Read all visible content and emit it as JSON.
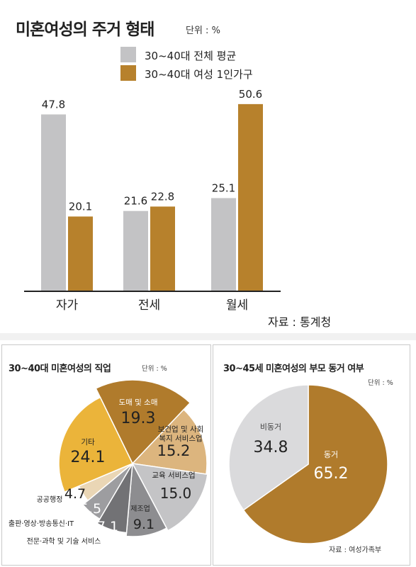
{
  "colors": {
    "gray": "#c3c3c5",
    "gold": "#b7812c",
    "pie_brown": "#b07b2c",
    "pie_light_tan": "#dcb57e",
    "pie_light_gray": "#c4c4c6",
    "pie_gray": "#8d8d90",
    "pie_dark_gray": "#727275",
    "pie_mid_gray": "#9d9da0",
    "pie_beige": "#ead6b5",
    "pie_yellow": "#ebb43a",
    "pie_rest": "#dadadc"
  },
  "top_chart": {
    "title": "미혼여성의 주거 형태",
    "unit": "단위 : %",
    "source": "자료 : 통계청",
    "chart_data": {
      "type": "bar",
      "categories": [
        "자가",
        "전세",
        "월세"
      ],
      "series": [
        {
          "name": "30~40대 전체 평균",
          "values": [
            47.8,
            21.6,
            25.1
          ],
          "labels": [
            "47.8",
            "21.6",
            "25.1"
          ]
        },
        {
          "name": "30~40대 여성 1인가구",
          "values": [
            20.1,
            22.8,
            50.6
          ],
          "labels": [
            "20.1",
            "22.8",
            "50.6"
          ]
        }
      ],
      "ylim": [
        0,
        52
      ]
    }
  },
  "left_chart": {
    "title": "30~40대 미혼여성의 직업",
    "unit": "단위 : %",
    "chart_data": {
      "type": "pie",
      "slices": [
        {
          "name": "도매 및 소매",
          "value": 19.3,
          "label": "19.3"
        },
        {
          "name": "보건업 및 사회복지 서비스업",
          "name_lines": [
            "보건업 및 사회",
            "복지 서비스업"
          ],
          "value": 15.2,
          "label": "15.2"
        },
        {
          "name": "교육 서비스업",
          "value": 15.0,
          "label": "15.0"
        },
        {
          "name": "제조업",
          "value": 9.1,
          "label": "9.1"
        },
        {
          "name": "전문·과학 및 기술 서비스",
          "value": 7.1,
          "label": "7.1"
        },
        {
          "name": "출판·영상·방송통신·IT",
          "value": 5.5,
          "label": "5.5"
        },
        {
          "name": "공공행정",
          "value": 4.7,
          "label": "4.7"
        },
        {
          "name": "기타",
          "value": 24.1,
          "label": "24.1"
        }
      ]
    }
  },
  "right_chart": {
    "title": "30~45세 미혼여성의 부모 동거 여부",
    "unit": "단위 : %",
    "source": "자료 : 여성가족부",
    "chart_data": {
      "type": "pie",
      "slices": [
        {
          "name": "동거",
          "value": 65.2,
          "label": "65.2"
        },
        {
          "name": "비동거",
          "value": 34.8,
          "label": "34.8"
        }
      ]
    }
  }
}
